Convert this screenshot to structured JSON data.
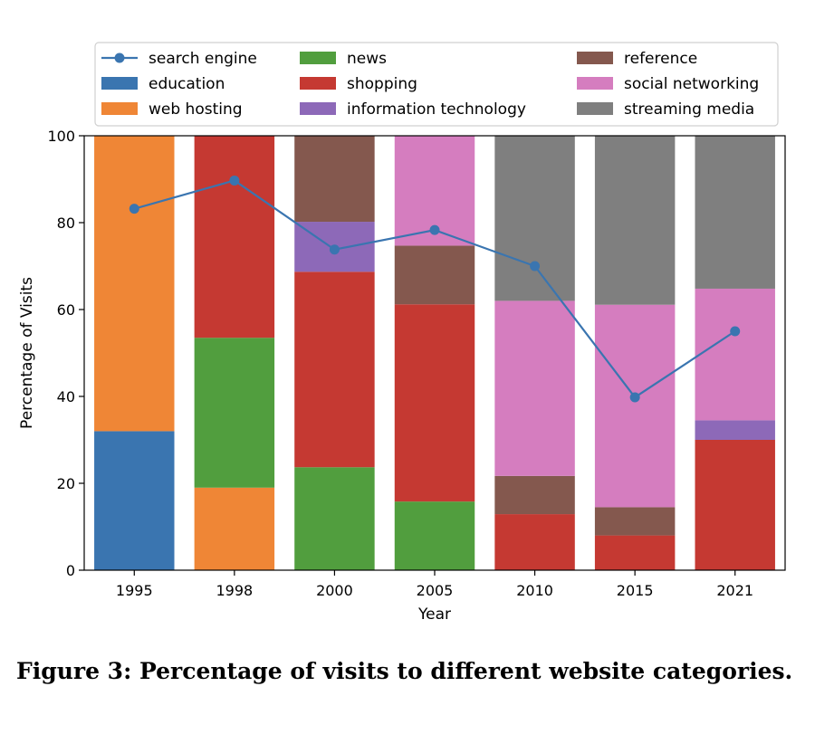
{
  "chart_data": {
    "type": "bar",
    "stacked": true,
    "categories": [
      "1995",
      "1998",
      "2000",
      "2005",
      "2010",
      "2015",
      "2021"
    ],
    "xlabel": "Year",
    "ylabel": "Percentage of Visits",
    "ylim": [
      0,
      100
    ],
    "yticks": [
      0,
      20,
      40,
      60,
      80,
      100
    ],
    "legend_position": "top",
    "series": [
      {
        "name": "education",
        "color": "#3a75b0",
        "values": [
          32,
          0,
          0,
          0,
          0,
          0,
          0
        ]
      },
      {
        "name": "web hosting",
        "color": "#ef8636",
        "values": [
          68,
          19,
          0,
          0,
          0,
          0,
          0
        ]
      },
      {
        "name": "news",
        "color": "#519e3e",
        "values": [
          0,
          34.5,
          23.7,
          15.8,
          0,
          0,
          0
        ]
      },
      {
        "name": "shopping",
        "color": "#c53932",
        "values": [
          0,
          46.5,
          45,
          45.4,
          12.9,
          8,
          30
        ]
      },
      {
        "name": "information technology",
        "color": "#8d69b8",
        "values": [
          0,
          0,
          11.5,
          0,
          0,
          0,
          4.5
        ]
      },
      {
        "name": "reference",
        "color": "#84584e",
        "values": [
          0,
          0,
          19.8,
          13.5,
          8.8,
          6.5,
          0
        ]
      },
      {
        "name": "social networking",
        "color": "#d57dbf",
        "values": [
          0,
          0,
          0,
          25.3,
          40.3,
          46.6,
          30.3
        ]
      },
      {
        "name": "streaming media",
        "color": "#7f7f7f",
        "values": [
          0,
          0,
          0,
          0,
          38,
          38.9,
          35.2
        ]
      }
    ],
    "line_series": {
      "name": "search engine",
      "color": "#3a75b0",
      "values": [
        83.2,
        89.7,
        73.8,
        78.3,
        70,
        39.8,
        55
      ]
    },
    "legend_order": [
      "search engine",
      "news",
      "reference",
      "education",
      "shopping",
      "social networking",
      "web hosting",
      "information technology",
      "streaming media"
    ]
  },
  "caption": "Figure 3: Percentage of visits to different website categories."
}
